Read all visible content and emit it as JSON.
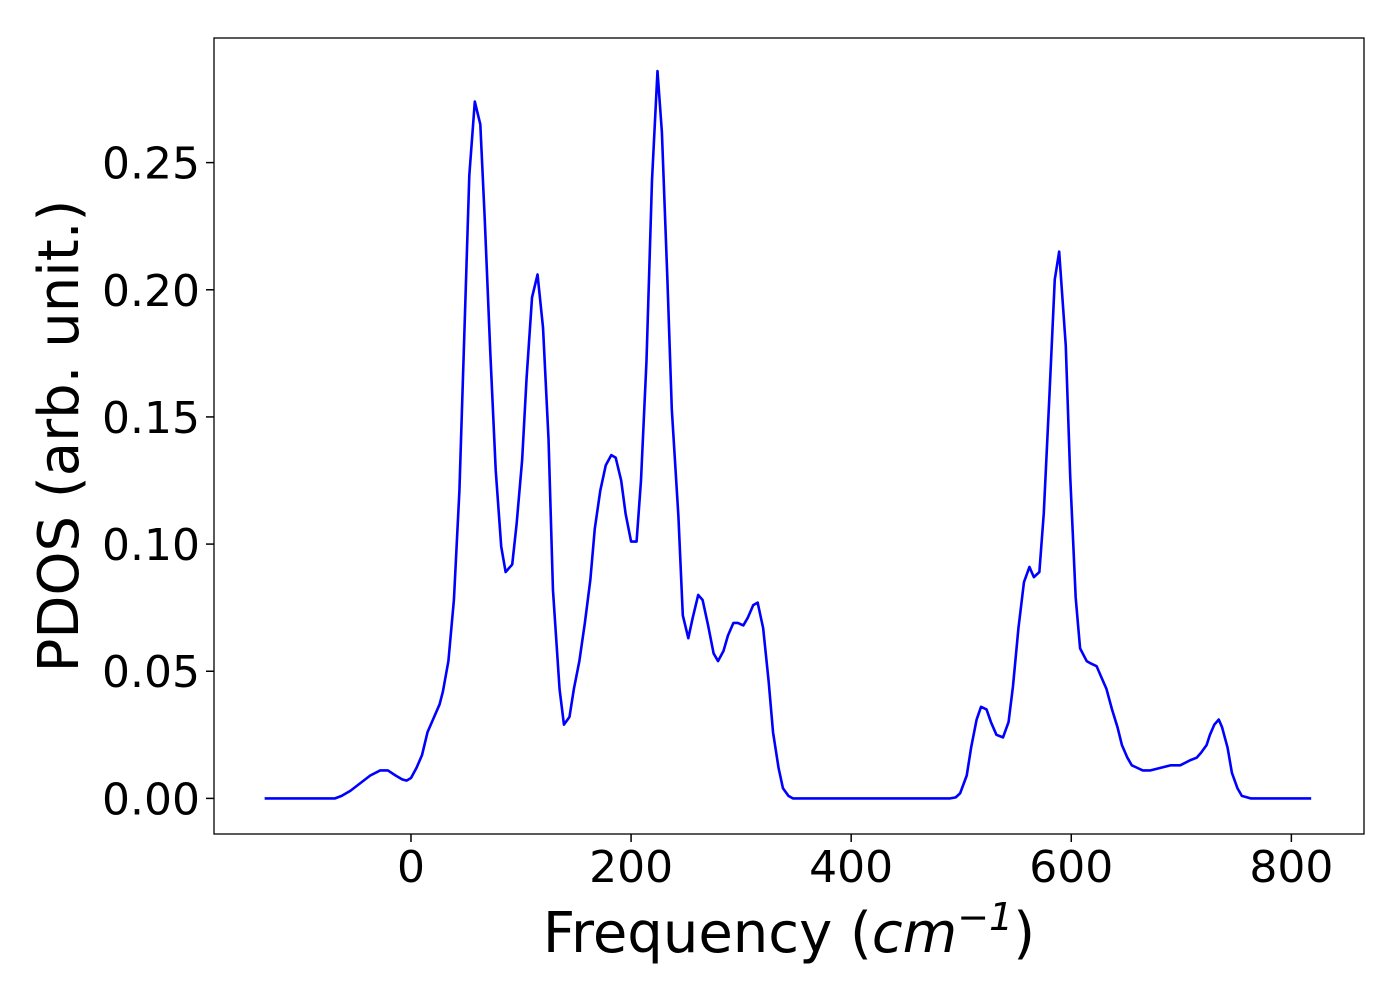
{
  "chart_data": {
    "type": "line",
    "x_label": [
      "Frequency (",
      "cm",
      "−1",
      ")"
    ],
    "y_label": "PDOS (arb. unit.)",
    "xlim": [
      -179,
      866
    ],
    "ylim": [
      -0.014,
      0.299
    ],
    "xticks": [
      0,
      200,
      400,
      600,
      800
    ],
    "yticks": [
      {
        "value": 0,
        "label": "0.00"
      },
      0.05,
      {
        "value": 0.1,
        "label": "0.10"
      },
      0.15,
      {
        "value": 0.2,
        "label": "0.20"
      },
      0.25
    ],
    "grid": false,
    "series": [
      {
        "color": "#0000ff",
        "x": [
          -133,
          -69,
          -63,
          -55,
          -46,
          -37,
          -28,
          -21,
          -14,
          -8,
          -4,
          0,
          5,
          10,
          15,
          21,
          26,
          29,
          34,
          39,
          44,
          48,
          53,
          58,
          63,
          67,
          72,
          77,
          82,
          86,
          92,
          96,
          101,
          105,
          110,
          115,
          120,
          125,
          129,
          135,
          139,
          144,
          148,
          153,
          158,
          163,
          167,
          172,
          177,
          182,
          186,
          191,
          195,
          200,
          205,
          209,
          214,
          219,
          224,
          228,
          233,
          237,
          243,
          247,
          252,
          256,
          261,
          265,
          270,
          275,
          279,
          284,
          288,
          293,
          297,
          302,
          306,
          311,
          315,
          320,
          325,
          329,
          334,
          338,
          343,
          347,
          490,
          495,
          499,
          505,
          509,
          514,
          518,
          523,
          527,
          532,
          538,
          543,
          547,
          552,
          557,
          562,
          566,
          571,
          575,
          580,
          585,
          589,
          595,
          599,
          604,
          608,
          614,
          618,
          623,
          627,
          632,
          637,
          642,
          646,
          651,
          655,
          660,
          665,
          672,
          681,
          690,
          699,
          708,
          714,
          718,
          723,
          726,
          730,
          734,
          737,
          742,
          746,
          751,
          755,
          763,
          818
        ],
        "values": [
          0,
          0,
          0.001,
          0.003,
          0.006,
          0.009,
          0.011,
          0.011,
          0.009,
          0.0075,
          0.007,
          0.008,
          0.012,
          0.017,
          0.026,
          0.032,
          0.037,
          0.042,
          0.054,
          0.078,
          0.121,
          0.176,
          0.245,
          0.274,
          0.265,
          0.228,
          0.176,
          0.129,
          0.099,
          0.089,
          0.092,
          0.108,
          0.133,
          0.165,
          0.197,
          0.206,
          0.185,
          0.141,
          0.082,
          0.043,
          0.029,
          0.032,
          0.043,
          0.054,
          0.069,
          0.086,
          0.106,
          0.121,
          0.131,
          0.135,
          0.134,
          0.125,
          0.112,
          0.101,
          0.101,
          0.125,
          0.172,
          0.243,
          0.286,
          0.262,
          0.204,
          0.153,
          0.111,
          0.072,
          0.063,
          0.071,
          0.08,
          0.078,
          0.068,
          0.057,
          0.054,
          0.058,
          0.064,
          0.069,
          0.069,
          0.068,
          0.071,
          0.076,
          0.077,
          0.067,
          0.046,
          0.026,
          0.012,
          0.004,
          0.001,
          0,
          0,
          0.0004,
          0.002,
          0.009,
          0.02,
          0.031,
          0.036,
          0.035,
          0.03,
          0.025,
          0.024,
          0.03,
          0.044,
          0.067,
          0.085,
          0.091,
          0.087,
          0.089,
          0.112,
          0.157,
          0.204,
          0.215,
          0.178,
          0.127,
          0.079,
          0.059,
          0.054,
          0.053,
          0.052,
          0.048,
          0.043,
          0.035,
          0.028,
          0.021,
          0.016,
          0.013,
          0.012,
          0.011,
          0.011,
          0.012,
          0.013,
          0.013,
          0.015,
          0.016,
          0.018,
          0.021,
          0.025,
          0.029,
          0.031,
          0.028,
          0.02,
          0.01,
          0.004,
          0.001,
          0,
          0
        ]
      }
    ]
  }
}
